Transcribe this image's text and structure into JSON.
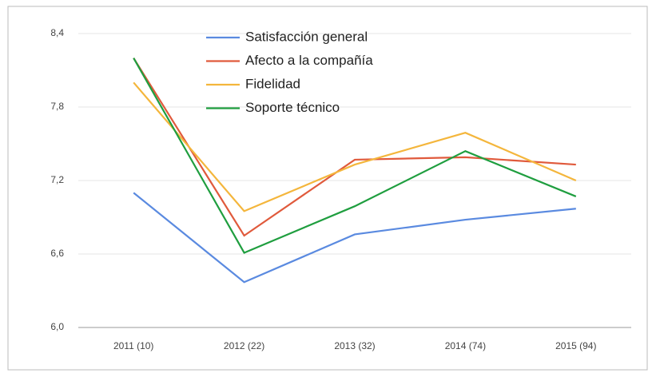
{
  "chart_data": {
    "type": "line",
    "categories": [
      "2011 (10)",
      "2012 (22)",
      "2013 (32)",
      "2014 (74)",
      "2015 (94)"
    ],
    "series": [
      {
        "name": "Satisfacción general",
        "color": "#5a8ae0",
        "values": [
          7.1,
          6.37,
          6.76,
          6.88,
          6.97
        ]
      },
      {
        "name": "Afecto a la compañía",
        "color": "#e05a3c",
        "values": [
          8.2,
          6.75,
          7.37,
          7.39,
          7.33
        ]
      },
      {
        "name": "Fidelidad",
        "color": "#f4b63c",
        "values": [
          8.0,
          6.95,
          7.33,
          7.59,
          7.2
        ]
      },
      {
        "name": "Soporte técnico",
        "color": "#1f9e3f",
        "values": [
          8.2,
          6.61,
          6.99,
          7.44,
          7.07
        ]
      }
    ],
    "ylim": [
      6.0,
      8.4
    ],
    "yticks": [
      {
        "value": 6.0,
        "label": "6,0"
      },
      {
        "value": 6.6,
        "label": "6,6"
      },
      {
        "value": 7.2,
        "label": "7,2"
      },
      {
        "value": 7.8,
        "label": "7,8"
      },
      {
        "value": 8.4,
        "label": "8,4"
      }
    ],
    "grid": true,
    "legend": "top-left"
  }
}
